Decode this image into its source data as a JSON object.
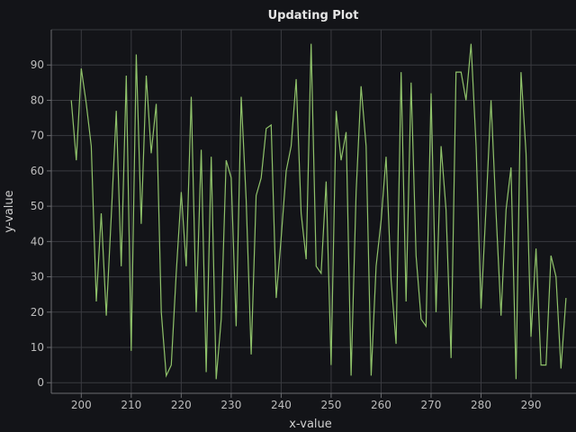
{
  "chart_data": {
    "type": "line",
    "title": "Updating Plot",
    "xlabel": "x-value",
    "ylabel": "y-value",
    "xlim": [
      194,
      299
    ],
    "ylim": [
      -3,
      100
    ],
    "grid": true,
    "series_color": "#8fc26a",
    "background": "#131418",
    "x_ticks": [
      200,
      210,
      220,
      230,
      240,
      250,
      260,
      270,
      280,
      290
    ],
    "y_ticks": [
      0,
      10,
      20,
      30,
      40,
      50,
      60,
      70,
      80,
      90
    ],
    "series": [
      {
        "x": [
          198,
          199,
          200,
          201,
          202,
          203,
          204,
          205,
          206,
          207,
          208,
          209,
          210,
          211,
          212,
          213,
          214,
          215,
          216,
          217,
          218,
          219,
          220,
          221,
          222,
          223,
          224,
          225,
          226,
          227,
          228,
          229,
          230,
          231,
          232,
          233,
          234,
          235,
          236,
          237,
          238,
          239,
          240,
          241,
          242,
          243,
          244,
          245,
          246,
          247,
          248,
          249,
          250,
          251,
          252,
          253,
          254,
          255,
          256,
          257,
          258,
          259,
          260,
          261,
          262,
          263,
          264,
          265,
          266,
          267,
          268,
          269,
          270,
          271,
          272,
          273,
          274,
          275,
          276,
          277,
          278,
          279,
          280,
          281,
          282,
          283,
          284,
          285,
          286,
          287,
          288,
          289,
          290,
          291,
          292,
          293,
          294,
          295,
          296,
          297
        ],
        "values": [
          80,
          63,
          89,
          79,
          67,
          23,
          48,
          19,
          47,
          77,
          33,
          87,
          9,
          93,
          45,
          87,
          65,
          79,
          20,
          2,
          5,
          31,
          54,
          33,
          81,
          20,
          66,
          3,
          64,
          1,
          18,
          63,
          58,
          16,
          81,
          52,
          8,
          53,
          58,
          72,
          73,
          24,
          41,
          60,
          67,
          86,
          48,
          35,
          96,
          33,
          31,
          57,
          5,
          77,
          63,
          71,
          2,
          54,
          84,
          67,
          2,
          33,
          46,
          64,
          29,
          11,
          88,
          23,
          85,
          36,
          18,
          16,
          82,
          20,
          67,
          49,
          7,
          88,
          88,
          80,
          96,
          67,
          21,
          50,
          80,
          48,
          19,
          49,
          61,
          1,
          88,
          65,
          13,
          38,
          5,
          5,
          36,
          30,
          4,
          24
        ]
      }
    ]
  }
}
